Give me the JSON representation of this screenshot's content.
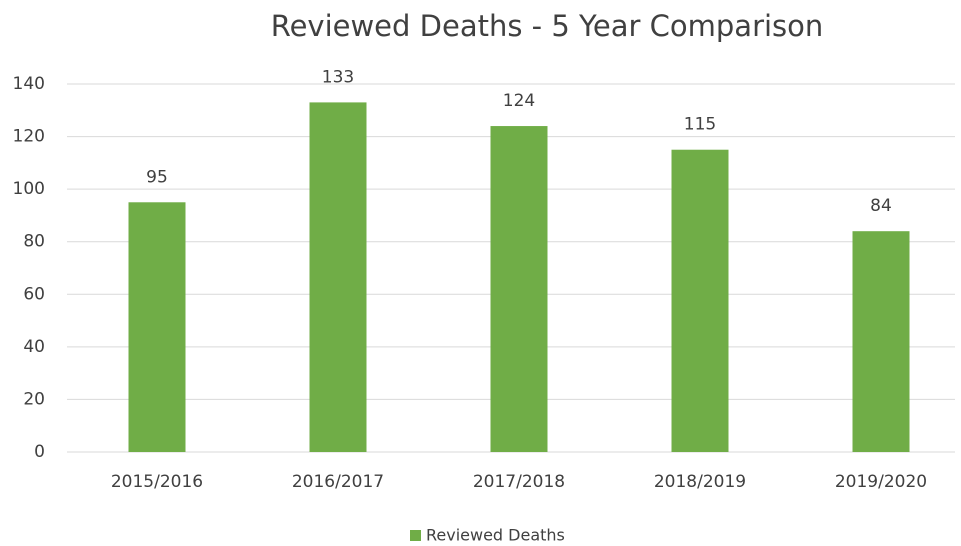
{
  "chart_data": {
    "type": "bar",
    "title": "Reviewed Deaths - 5 Year Comparison",
    "categories": [
      "2015/2016",
      "2016/2017",
      "2017/2018",
      "2018/2019",
      "2019/2020"
    ],
    "series": [
      {
        "name": "Reviewed Deaths",
        "color": "#70ad47",
        "values": [
          95,
          133,
          124,
          115,
          84
        ]
      }
    ],
    "ylim": [
      0,
      140
    ],
    "yticks": [
      0,
      20,
      40,
      60,
      80,
      100,
      120,
      140
    ],
    "grid": true,
    "legend": "bottom"
  }
}
